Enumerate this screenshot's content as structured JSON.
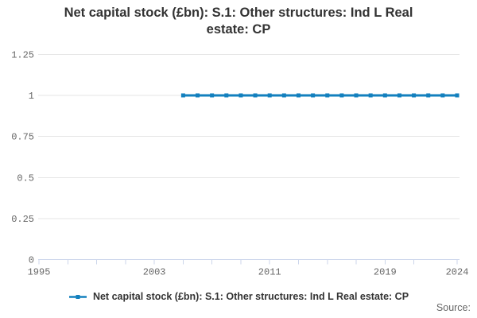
{
  "header": {
    "title_line1": "Net capital stock (£bn): S.1: Other structures: Ind L Real",
    "title_line2": "estate: CP"
  },
  "legend": {
    "label": "Net capital stock (£bn): S.1: Other structures: Ind L Real estate: CP"
  },
  "footer": {
    "source_label": "Source:"
  },
  "chart_data": {
    "type": "line",
    "title": "Net capital stock (£bn): S.1: Other structures: Ind L Real estate: CP",
    "series": [
      {
        "name": "Net capital stock (£bn): S.1: Other structures: Ind L Real estate: CP",
        "color": "#1380be",
        "x": [
          2005,
          2006,
          2007,
          2008,
          2009,
          2010,
          2011,
          2012,
          2013,
          2014,
          2015,
          2016,
          2017,
          2018,
          2019,
          2020,
          2021,
          2022,
          2023,
          2024
        ],
        "values": [
          1,
          1,
          1,
          1,
          1,
          1,
          1,
          1,
          1,
          1,
          1,
          1,
          1,
          1,
          1,
          1,
          1,
          1,
          1,
          1
        ]
      }
    ],
    "xlabel": "",
    "ylabel": "",
    "xlim": [
      1995,
      2024
    ],
    "ylim": [
      0,
      1.25
    ],
    "yticks": [
      0,
      0.25,
      0.5,
      0.75,
      1,
      1.25
    ],
    "ytick_labels": [
      "0",
      "0.25",
      "0.5",
      "0.75",
      "1",
      "1.25"
    ],
    "xticks": [
      1995,
      1997,
      1999,
      2001,
      2003,
      2005,
      2007,
      2009,
      2011,
      2013,
      2015,
      2017,
      2019,
      2021,
      2024
    ],
    "xtick_label_years": [
      1995,
      2003,
      2011,
      2019,
      2024
    ],
    "grid": "horizontal",
    "legend_position": "bottom",
    "marker_shape": "square",
    "colors": {
      "line": "#1380be",
      "gridline": "#e6e6e6",
      "axis": "#ccd6eb",
      "tick_label": "#666666",
      "title": "#333333"
    }
  }
}
